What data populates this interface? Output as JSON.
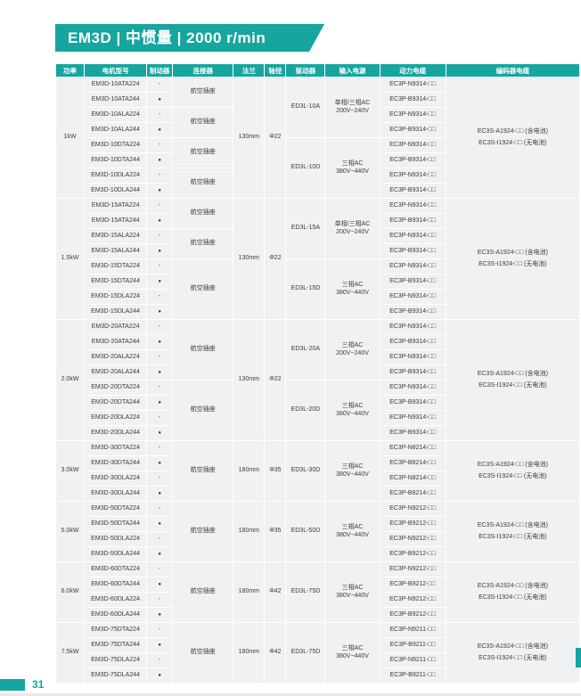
{
  "page": {
    "title": "EM3D | 中惯量 | 2000 r/min",
    "page_number": "31"
  },
  "colors": {
    "accent": "#16a59f",
    "cell_bg": "#f0f1f3",
    "text": "#3b3b3b"
  },
  "table": {
    "headers": [
      "功率",
      "电机型号",
      "制动器",
      "连接器",
      "法兰",
      "轴径",
      "驱动器",
      "输入电源",
      "动力电缆",
      "编码器电缆"
    ],
    "connector_label": "航空插座",
    "brake_on": "●",
    "brake_off": "-",
    "sections": [
      {
        "power": "1kW",
        "flange": "130mm",
        "shaft": "Φ22",
        "connector_spans": [
          2,
          2,
          2,
          2
        ],
        "drive_groups": [
          {
            "driver": "ED3L-10A",
            "input_lines": [
              "单相/三相AC",
              "200V~240V"
            ],
            "span": 4
          },
          {
            "driver": "ED3L-10D",
            "input_lines": [
              "三相AC",
              "380V~440V"
            ],
            "span": 4
          }
        ],
        "rows": [
          {
            "model": "EM3D-10ATA224",
            "brake": false,
            "power_cable": "EC3P-N9314-□□"
          },
          {
            "model": "EM3D-10ATA244",
            "brake": true,
            "power_cable": "EC3P-B9314-□□"
          },
          {
            "model": "EM3D-10ALA224",
            "brake": false,
            "power_cable": "EC3P-N9314-□□"
          },
          {
            "model": "EM3D-10ALA244",
            "brake": true,
            "power_cable": "EC3P-B9314-□□"
          },
          {
            "model": "EM3D-10DTA224",
            "brake": false,
            "power_cable": "EC3P-N9314-□□"
          },
          {
            "model": "EM3D-10DTA244",
            "brake": true,
            "power_cable": "EC3P-B9314-□□"
          },
          {
            "model": "EM3D-10DLA224",
            "brake": false,
            "power_cable": "EC3P-N9314-□□"
          },
          {
            "model": "EM3D-10DLA244",
            "brake": true,
            "power_cable": "EC3P-B9314-□□"
          }
        ],
        "encoder_lines": [
          "EC3S-A1924-□□ (含电池)",
          "EC3S-I1924-□□ (无电池)"
        ]
      },
      {
        "power": "1.5kW",
        "flange": "130mm",
        "shaft": "Φ22",
        "connector_spans": [
          2,
          2,
          4
        ],
        "drive_groups": [
          {
            "driver": "ED3L-15A",
            "input_lines": [
              "单相/三相AC",
              "200V~240V"
            ],
            "span": 4
          },
          {
            "driver": "ED3L-15D",
            "input_lines": [
              "三相AC",
              "380V~440V"
            ],
            "span": 4
          }
        ],
        "rows": [
          {
            "model": "EM3D-15ATA224",
            "brake": false,
            "power_cable": "EC3P-N9314-□□"
          },
          {
            "model": "EM3D-15ATA244",
            "brake": true,
            "power_cable": "EC3P-B9314-□□"
          },
          {
            "model": "EM3D-15ALA224",
            "brake": false,
            "power_cable": "EC3P-N9314-□□"
          },
          {
            "model": "EM3D-15ALA244",
            "brake": true,
            "power_cable": "EC3P-B9314-□□"
          },
          {
            "model": "EM3D-15DTA224",
            "brake": false,
            "power_cable": "EC3P-N9314-□□"
          },
          {
            "model": "EM3D-15DTA244",
            "brake": true,
            "power_cable": "EC3P-B9314-□□"
          },
          {
            "model": "EM3D-15DLA224",
            "brake": false,
            "power_cable": "EC3P-N9314-□□"
          },
          {
            "model": "EM3D-15DLA244",
            "brake": true,
            "power_cable": "EC3P-B9314-□□"
          }
        ],
        "encoder_lines": [
          "EC3S-A1924-□□ (含电池)",
          "EC3S-I1924-□□ (无电池)"
        ]
      },
      {
        "power": "2.0kW",
        "flange": "130mm",
        "shaft": "Φ22",
        "connector_spans": [
          4,
          4
        ],
        "drive_groups": [
          {
            "driver": "ED3L-20A",
            "input_lines": [
              "三相AC",
              "200V~240V"
            ],
            "span": 4
          },
          {
            "driver": "ED3L-20D",
            "input_lines": [
              "三相AC",
              "380V~440V"
            ],
            "span": 4
          }
        ],
        "rows": [
          {
            "model": "EM3D-20ATA224",
            "brake": false,
            "power_cable": "EC3P-N9314-□□"
          },
          {
            "model": "EM3D-20ATA244",
            "brake": true,
            "power_cable": "EC3P-B9314-□□"
          },
          {
            "model": "EM3D-20ALA224",
            "brake": false,
            "power_cable": "EC3P-N9314-□□"
          },
          {
            "model": "EM3D-20ALA244",
            "brake": true,
            "power_cable": "EC3P-B9314-□□"
          },
          {
            "model": "EM3D-20DTA224",
            "brake": false,
            "power_cable": "EC3P-N9314-□□"
          },
          {
            "model": "EM3D-20DTA244",
            "brake": true,
            "power_cable": "EC3P-B9314-□□"
          },
          {
            "model": "EM3D-20DLA224",
            "brake": false,
            "power_cable": "EC3P-N9314-□□"
          },
          {
            "model": "EM3D-20DLA244",
            "brake": true,
            "power_cable": "EC3P-B9314-□□"
          }
        ],
        "encoder_lines": [
          "EC3S-A1924-□□ (含电池)",
          "EC3S-I1924-□□ (无电池)"
        ]
      },
      {
        "power": "3.0kW",
        "flange": "180mm",
        "shaft": "Φ35",
        "connector_spans": [
          4
        ],
        "drive_groups": [
          {
            "driver": "ED3L-30D",
            "input_lines": [
              "三相AC",
              "380V~440V"
            ],
            "span": 4
          }
        ],
        "rows": [
          {
            "model": "EM3D-30DTA224",
            "brake": false,
            "power_cable": "EC3P-N8214-□□"
          },
          {
            "model": "EM3D-30DTA244",
            "brake": true,
            "power_cable": "EC3P-B8214-□□"
          },
          {
            "model": "EM3D-30DLA224",
            "brake": false,
            "power_cable": "EC3P-N8214-□□"
          },
          {
            "model": "EM3D-30DLA244",
            "brake": true,
            "power_cable": "EC3P-B8214-□□"
          }
        ],
        "encoder_lines": [
          "EC3S-A1924-□□ (含电池)",
          "EC3S-I1924-□□ (无电池)"
        ]
      },
      {
        "power": "5.0kW",
        "flange": "180mm",
        "shaft": "Φ35",
        "connector_spans": [
          4
        ],
        "drive_groups": [
          {
            "driver": "ED3L-50D",
            "input_lines": [
              "三相AC",
              "380V~440V"
            ],
            "span": 4
          }
        ],
        "rows": [
          {
            "model": "EM3D-50DTA224",
            "brake": false,
            "power_cable": "EC3P-N9212-□□"
          },
          {
            "model": "EM3D-50DTA244",
            "brake": true,
            "power_cable": "EC3P-B9212-□□"
          },
          {
            "model": "EM3D-50DLA224",
            "brake": false,
            "power_cable": "EC3P-N9212-□□"
          },
          {
            "model": "EM3D-50DLA244",
            "brake": true,
            "power_cable": "EC3P-B9212-□□"
          }
        ],
        "encoder_lines": [
          "EC3S-A1924-□□ (含电池)",
          "EC3S-I1924-□□ (无电池)"
        ]
      },
      {
        "power": "6.0kW",
        "flange": "180mm",
        "shaft": "Φ42",
        "connector_spans": [
          4
        ],
        "drive_groups": [
          {
            "driver": "ED3L-75D",
            "input_lines": [
              "三相AC",
              "380V~440V"
            ],
            "span": 4
          }
        ],
        "rows": [
          {
            "model": "EM3D-60DTA224",
            "brake": false,
            "power_cable": "EC3P-N9212-□□"
          },
          {
            "model": "EM3D-60DTA244",
            "brake": true,
            "power_cable": "EC3P-B9212-□□"
          },
          {
            "model": "EM3D-60DLA224",
            "brake": false,
            "power_cable": "EC3P-N9212-□□"
          },
          {
            "model": "EM3D-60DLA244",
            "brake": true,
            "power_cable": "EC3P-B9212-□□"
          }
        ],
        "encoder_lines": [
          "EC3S-A1924-□□ (含电池)",
          "EC3S-I1924-□□ (无电池)"
        ]
      },
      {
        "power": "7.5kW",
        "flange": "180mm",
        "shaft": "Φ42",
        "connector_spans": [
          4
        ],
        "drive_groups": [
          {
            "driver": "ED3L-75D",
            "input_lines": [
              "三相AC",
              "380V~440V"
            ],
            "span": 4
          }
        ],
        "rows": [
          {
            "model": "EM3D-75DTA224",
            "brake": false,
            "power_cable": "EC3P-N9211-□□"
          },
          {
            "model": "EM3D-75DTA244",
            "brake": true,
            "power_cable": "EC3P-B9211-□□"
          },
          {
            "model": "EM3D-75DLA224",
            "brake": false,
            "power_cable": "EC3P-N9211-□□"
          },
          {
            "model": "EM3D-75DLA244",
            "brake": true,
            "power_cable": "EC3P-B9211-□□"
          }
        ],
        "encoder_lines": [
          "EC3S-A1924-□□ (含电池)",
          "EC3S-I1924-□□ (无电池)"
        ]
      }
    ]
  }
}
